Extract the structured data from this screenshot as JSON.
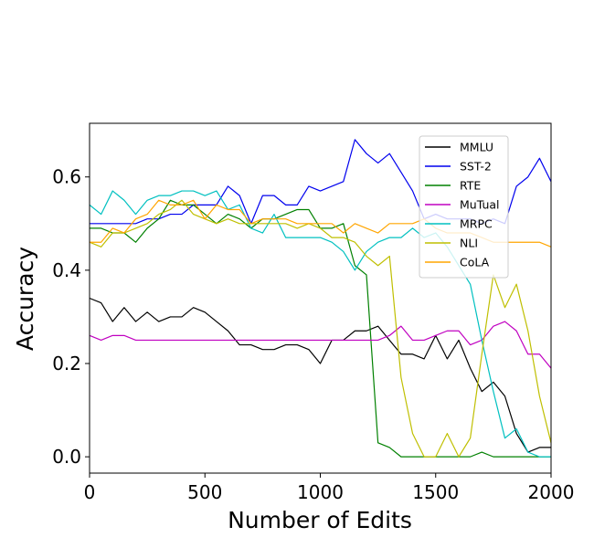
{
  "chart_data": {
    "type": "line",
    "xlabel": "Number of Edits",
    "ylabel": "Accuracy",
    "xlim": [
      0,
      2000
    ],
    "ylim": [
      -0.035,
      0.715
    ],
    "xticks": [
      0,
      500,
      1000,
      1500,
      2000
    ],
    "yticks": [
      0.0,
      0.2,
      0.4,
      0.6
    ],
    "x_tick_labels": [
      "0",
      "500",
      "1000",
      "1500",
      "2000"
    ],
    "y_tick_labels": [
      "0.0",
      "0.2",
      "0.4",
      "0.6"
    ],
    "grid": false,
    "legend_position": "upper-right",
    "x": [
      0,
      50,
      100,
      150,
      200,
      250,
      300,
      350,
      400,
      450,
      500,
      550,
      600,
      650,
      700,
      750,
      800,
      850,
      900,
      950,
      1000,
      1050,
      1100,
      1150,
      1200,
      1250,
      1300,
      1350,
      1400,
      1450,
      1500,
      1550,
      1600,
      1650,
      1700,
      1750,
      1800,
      1850,
      1900,
      1950,
      2000
    ],
    "series": [
      {
        "name": "MMLU",
        "color": "#000000",
        "values": [
          0.34,
          0.33,
          0.29,
          0.32,
          0.29,
          0.31,
          0.29,
          0.3,
          0.3,
          0.32,
          0.31,
          0.29,
          0.27,
          0.24,
          0.24,
          0.23,
          0.23,
          0.24,
          0.24,
          0.23,
          0.2,
          0.25,
          0.25,
          0.27,
          0.27,
          0.28,
          0.25,
          0.22,
          0.22,
          0.21,
          0.26,
          0.21,
          0.25,
          0.19,
          0.14,
          0.16,
          0.13,
          0.05,
          0.01,
          0.02,
          0.02
        ]
      },
      {
        "name": "SST-2",
        "color": "#0000ee",
        "values": [
          0.5,
          0.5,
          0.5,
          0.5,
          0.5,
          0.51,
          0.51,
          0.52,
          0.52,
          0.54,
          0.54,
          0.54,
          0.58,
          0.56,
          0.5,
          0.56,
          0.56,
          0.54,
          0.54,
          0.58,
          0.57,
          0.58,
          0.59,
          0.68,
          0.65,
          0.63,
          0.65,
          0.61,
          0.57,
          0.51,
          0.52,
          0.51,
          0.51,
          0.51,
          0.5,
          0.51,
          0.5,
          0.58,
          0.6,
          0.64,
          0.59
        ]
      },
      {
        "name": "RTE",
        "color": "#008000",
        "values": [
          0.49,
          0.49,
          0.48,
          0.48,
          0.46,
          0.49,
          0.51,
          0.55,
          0.54,
          0.54,
          0.52,
          0.5,
          0.52,
          0.51,
          0.49,
          0.51,
          0.51,
          0.52,
          0.53,
          0.53,
          0.49,
          0.49,
          0.5,
          0.41,
          0.39,
          0.03,
          0.02,
          0.0,
          0.0,
          0.0,
          0.0,
          0.0,
          0.0,
          0.0,
          0.01,
          0.0,
          0.0,
          0.0,
          0.0,
          0.0,
          0.0
        ]
      },
      {
        "name": "MuTual",
        "color": "#c000c0",
        "values": [
          0.26,
          0.25,
          0.26,
          0.26,
          0.25,
          0.25,
          0.25,
          0.25,
          0.25,
          0.25,
          0.25,
          0.25,
          0.25,
          0.25,
          0.25,
          0.25,
          0.25,
          0.25,
          0.25,
          0.25,
          0.25,
          0.25,
          0.25,
          0.25,
          0.25,
          0.25,
          0.26,
          0.28,
          0.25,
          0.25,
          0.26,
          0.27,
          0.27,
          0.24,
          0.25,
          0.28,
          0.29,
          0.27,
          0.22,
          0.22,
          0.19
        ]
      },
      {
        "name": "MRPC",
        "color": "#00c0c0",
        "values": [
          0.54,
          0.52,
          0.57,
          0.55,
          0.52,
          0.55,
          0.56,
          0.56,
          0.57,
          0.57,
          0.56,
          0.57,
          0.53,
          0.54,
          0.49,
          0.48,
          0.52,
          0.47,
          0.47,
          0.47,
          0.47,
          0.46,
          0.44,
          0.4,
          0.44,
          0.46,
          0.47,
          0.47,
          0.49,
          0.47,
          0.48,
          0.45,
          0.41,
          0.37,
          0.25,
          0.14,
          0.04,
          0.06,
          0.01,
          0.0,
          0.0
        ]
      },
      {
        "name": "NLI",
        "color": "#bfbf00",
        "values": [
          0.46,
          0.45,
          0.48,
          0.48,
          0.49,
          0.5,
          0.52,
          0.53,
          0.55,
          0.52,
          0.51,
          0.5,
          0.51,
          0.5,
          0.5,
          0.5,
          0.5,
          0.5,
          0.49,
          0.5,
          0.49,
          0.47,
          0.47,
          0.46,
          0.43,
          0.41,
          0.43,
          0.17,
          0.05,
          0.0,
          0.0,
          0.05,
          0.0,
          0.04,
          0.22,
          0.39,
          0.32,
          0.37,
          0.27,
          0.13,
          0.03
        ]
      },
      {
        "name": "CoLA",
        "color": "#ffa500",
        "values": [
          0.46,
          0.46,
          0.49,
          0.48,
          0.51,
          0.52,
          0.55,
          0.54,
          0.54,
          0.55,
          0.51,
          0.54,
          0.53,
          0.53,
          0.5,
          0.51,
          0.51,
          0.51,
          0.5,
          0.5,
          0.5,
          0.5,
          0.48,
          0.5,
          0.49,
          0.48,
          0.5,
          0.5,
          0.5,
          0.51,
          0.49,
          0.48,
          0.48,
          0.48,
          0.47,
          0.46,
          0.46,
          0.46,
          0.46,
          0.46,
          0.45
        ]
      }
    ]
  }
}
